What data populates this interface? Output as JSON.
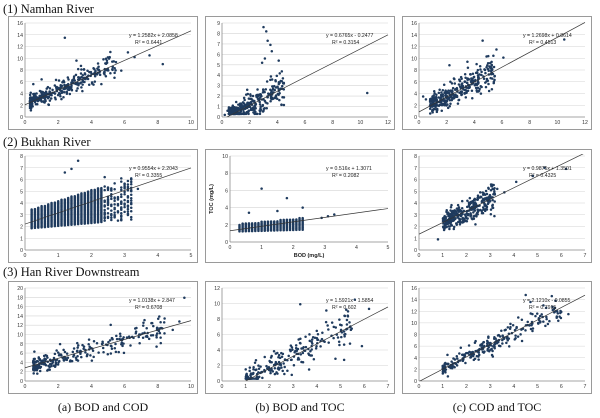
{
  "rows": [
    {
      "title": "(1)  Namhan  River"
    },
    {
      "title": "(2)  Bukhan  River"
    },
    {
      "title": "(3)  Han  River  Downstream"
    }
  ],
  "captions": [
    "(a)  BOD  and  COD",
    "(b)  BOD  and  TOC",
    "(c)  COD  and  TOC"
  ],
  "colors": {
    "point": "#1f3b5e",
    "trend": "#333333",
    "grid": "#d4d4d4",
    "axis": "#8c8c8c",
    "frame": "#9a9a9a"
  },
  "chart_data": [
    {
      "id": "1a",
      "type": "scatter",
      "title": "",
      "xlabel": "",
      "ylabel": "",
      "xlim": [
        0,
        10
      ],
      "ylim": [
        0,
        16
      ],
      "xticks": [
        "0",
        "2",
        "4",
        "6",
        "8",
        "10"
      ],
      "yticks": [
        "0",
        "2",
        "4",
        "6",
        "8",
        "10",
        "12",
        "14",
        "16"
      ],
      "grid": true,
      "equation": "y = 1.2582x + 2.0858",
      "r2": "R² = 0.6441",
      "trend": {
        "slope": 1.2582,
        "intercept": 2.0858
      },
      "cluster": {
        "n": 340,
        "xmin": 0.3,
        "xmax": 5.5,
        "skew": 1.7,
        "sd": 0.9
      },
      "points": [
        [
          2.4,
          13.5
        ],
        [
          6.2,
          11.0
        ],
        [
          7.5,
          10.5
        ],
        [
          8.3,
          9.0
        ],
        [
          5.1,
          10.2
        ],
        [
          0.5,
          5.6
        ],
        [
          1.0,
          6.4
        ],
        [
          3.1,
          9.6
        ],
        [
          4.4,
          9.1
        ],
        [
          5.8,
          7.9
        ],
        [
          6.6,
          10.2
        ]
      ]
    },
    {
      "id": "1b",
      "type": "scatter",
      "title": "",
      "xlabel": "",
      "ylabel": "",
      "xlim": [
        0,
        12
      ],
      "ylim": [
        0,
        9
      ],
      "xticks": [
        "0",
        "2",
        "4",
        "6",
        "8",
        "10",
        "12"
      ],
      "yticks": [
        "0",
        "1",
        "2",
        "3",
        "4",
        "5",
        "6",
        "7",
        "8",
        "9"
      ],
      "grid": true,
      "equation": "y = 0.6765x - 0.2477",
      "r2": "R² = 0.3154",
      "trend": {
        "slope": 0.6765,
        "intercept": -0.2477
      },
      "cluster": {
        "n": 340,
        "xmin": 0.5,
        "xmax": 4.5,
        "skew": 1.6,
        "sd": 0.7
      },
      "points": [
        [
          3.0,
          8.6
        ],
        [
          3.2,
          8.2
        ],
        [
          3.3,
          7.3
        ],
        [
          3.5,
          6.9
        ],
        [
          3.1,
          5.6
        ],
        [
          3.6,
          6.3
        ],
        [
          2.9,
          5.2
        ],
        [
          4.1,
          5.4
        ],
        [
          10.5,
          2.3
        ],
        [
          0.2,
          0.2
        ],
        [
          0.4,
          0.6
        ]
      ]
    },
    {
      "id": "1c",
      "type": "scatter",
      "title": "",
      "xlabel": "",
      "ylabel": "",
      "xlim": [
        0,
        12
      ],
      "ylim": [
        0,
        16
      ],
      "xticks": [
        "0",
        "2",
        "4",
        "6",
        "8",
        "10",
        "12"
      ],
      "yticks": [
        "0",
        "2",
        "4",
        "6",
        "8",
        "10",
        "12",
        "14",
        "16"
      ],
      "grid": true,
      "equation": "y = 1.2698x + 0.8614",
      "r2": "R² = 0.4513",
      "trend": {
        "slope": 1.2698,
        "intercept": 0.8614
      },
      "cluster": {
        "n": 340,
        "xmin": 0.8,
        "xmax": 5.5,
        "skew": 1.4,
        "sd": 1.2
      },
      "points": [
        [
          10.5,
          13.2
        ],
        [
          4.6,
          13.0
        ],
        [
          5.6,
          11.5
        ],
        [
          6.1,
          10.1
        ],
        [
          3.5,
          9.4
        ],
        [
          2.2,
          8.8
        ],
        [
          0.3,
          3.5
        ],
        [
          0.5,
          3.0
        ]
      ]
    },
    {
      "id": "2a",
      "type": "scatter",
      "title": "",
      "xlabel": "",
      "ylabel": "",
      "xlim": [
        0,
        5
      ],
      "ylim": [
        0,
        8
      ],
      "xticks": [
        "0",
        "1",
        "2",
        "3",
        "4",
        "5"
      ],
      "yticks": [
        "0",
        "1",
        "2",
        "3",
        "4",
        "5",
        "6",
        "7",
        "8"
      ],
      "grid": true,
      "equation": "y = 0.9554x + 2.2043",
      "r2": "R² = 0.3355",
      "trend": {
        "slope": 0.9554,
        "intercept": 2.2043
      },
      "cluster": {
        "n": 0
      },
      "columns": {
        "xmin": 0.2,
        "xmax": 3.2,
        "step": 0.1,
        "ymin_base": 1.8,
        "ymin_slope": 0.25,
        "ymax_base": 3.3,
        "ymax_slope": 0.9,
        "ystep": 0.1
      },
      "points": [
        [
          1.6,
          7.6
        ],
        [
          1.2,
          6.6
        ],
        [
          2.9,
          6.1
        ],
        [
          1.4,
          6.9
        ],
        [
          3.4,
          5.2
        ],
        [
          2.4,
          6.2
        ],
        [
          3.0,
          5.6
        ]
      ]
    },
    {
      "id": "2b",
      "type": "scatter",
      "title": "",
      "xlabel": "BOD (mg/L)",
      "ylabel": "TOC (mg/L)",
      "xlim": [
        0,
        5
      ],
      "ylim": [
        0,
        10
      ],
      "xticks": [
        "0",
        "1",
        "2",
        "3",
        "4",
        "5"
      ],
      "yticks": [
        "0",
        "2",
        "4",
        "6",
        "8",
        "10"
      ],
      "grid": true,
      "equation": "y = 0.516x + 1.3071",
      "r2": "R² = 0.2082",
      "trend": {
        "slope": 0.516,
        "intercept": 1.3071
      },
      "cluster": {
        "n": 0
      },
      "columns": {
        "xmin": 0.3,
        "xmax": 2.3,
        "step": 0.1,
        "ymin_base": 1.2,
        "ymin_slope": 0.1,
        "ymax_base": 2.0,
        "ymax_slope": 0.35,
        "ystep": 0.15
      },
      "points": [
        [
          1.0,
          6.2
        ],
        [
          1.8,
          5.1
        ],
        [
          2.3,
          4.0
        ],
        [
          3.3,
          3.2
        ],
        [
          3.1,
          3.0
        ],
        [
          0.6,
          3.4
        ],
        [
          1.5,
          3.6
        ],
        [
          2.9,
          2.8
        ]
      ]
    },
    {
      "id": "2c",
      "type": "scatter",
      "title": "",
      "xlabel": "",
      "ylabel": "",
      "xlim": [
        0,
        7
      ],
      "ylim": [
        0,
        8
      ],
      "xticks": [
        "0",
        "1",
        "2",
        "3",
        "4",
        "5",
        "6",
        "7"
      ],
      "yticks": [
        "0",
        "1",
        "2",
        "3",
        "4",
        "5",
        "6",
        "7",
        "8"
      ],
      "grid": true,
      "equation": "y = 0.9875x + 1.3501",
      "r2": "R² = 0.4325",
      "trend": {
        "slope": 0.9875,
        "intercept": 1.3501
      },
      "cluster": {
        "n": 330,
        "xmin": 1.0,
        "xmax": 3.2,
        "skew": 1.1,
        "sd": 0.55
      },
      "points": [
        [
          6.2,
          6.9
        ],
        [
          5.3,
          7.0
        ],
        [
          4.8,
          6.3
        ],
        [
          4.1,
          5.8
        ],
        [
          3.6,
          4.9
        ],
        [
          3.3,
          5.2
        ],
        [
          0.8,
          0.9
        ]
      ]
    },
    {
      "id": "3a",
      "type": "scatter",
      "title": "",
      "xlabel": "",
      "ylabel": "",
      "xlim": [
        0,
        10
      ],
      "ylim": [
        0,
        20
      ],
      "xticks": [
        "0",
        "2",
        "4",
        "6",
        "8",
        "10"
      ],
      "yticks": [
        "0",
        "2",
        "4",
        "6",
        "8",
        "10",
        "12",
        "14",
        "16",
        "18",
        "20"
      ],
      "grid": true,
      "equation": "y = 1.0138x + 2.847",
      "r2": "R² = 0.6708",
      "trend": {
        "slope": 1.0138,
        "intercept": 2.847
      },
      "cluster": {
        "n": 260,
        "xmin": 0.5,
        "xmax": 8.5,
        "skew": 1.9,
        "sd": 1.3
      },
      "points": [
        [
          9.6,
          17.9
        ],
        [
          8.9,
          11.0
        ],
        [
          9.3,
          12.8
        ],
        [
          7.2,
          13.1
        ],
        [
          7.6,
          9.8
        ],
        [
          6.3,
          9.3
        ],
        [
          0.8,
          3.0
        ]
      ]
    },
    {
      "id": "3b",
      "type": "scatter",
      "title": "",
      "xlabel": "",
      "ylabel": "",
      "xlim": [
        0,
        7
      ],
      "ylim": [
        0,
        12
      ],
      "xticks": [
        "0",
        "1",
        "2",
        "3",
        "4",
        "5",
        "6",
        "7"
      ],
      "yticks": [
        "0",
        "2",
        "4",
        "6",
        "8",
        "10",
        "12"
      ],
      "grid": true,
      "equation": "y = 1.5921x - 1.5854",
      "r2": "R² = 0.602",
      "trend": {
        "slope": 1.5921,
        "intercept": -1.5854
      },
      "cluster": {
        "n": 230,
        "xmin": 1.0,
        "xmax": 5.5,
        "skew": 1.5,
        "sd": 1.2
      },
      "points": [
        [
          3.3,
          9.9
        ],
        [
          6.2,
          9.3
        ],
        [
          5.9,
          4.5
        ],
        [
          5.6,
          10.5
        ],
        [
          4.4,
          9.1
        ],
        [
          1.0,
          1.5
        ],
        [
          1.3,
          0.9
        ]
      ]
    },
    {
      "id": "3c",
      "type": "scatter",
      "title": "",
      "xlabel": "",
      "ylabel": "",
      "xlim": [
        0,
        7
      ],
      "ylim": [
        0,
        16
      ],
      "xticks": [
        "0",
        "1",
        "2",
        "3",
        "4",
        "5",
        "6",
        "7"
      ],
      "yticks": [
        "0",
        "2",
        "4",
        "6",
        "8",
        "10",
        "12",
        "14",
        "16"
      ],
      "grid": true,
      "equation": "y = 2.1210x - 0.0855",
      "r2": "R² = 0.7915",
      "trend": {
        "slope": 2.121,
        "intercept": -0.0855
      },
      "cluster": {
        "n": 240,
        "xmin": 1.0,
        "xmax": 6.0,
        "skew": 1.3,
        "sd": 0.9
      },
      "points": [
        [
          4.5,
          14.8
        ],
        [
          4.7,
          13.6
        ],
        [
          6.3,
          11.5
        ],
        [
          5.6,
          14.6
        ],
        [
          1.2,
          4.5
        ],
        [
          1.4,
          2.2
        ],
        [
          1.0,
          2.6
        ]
      ]
    }
  ]
}
